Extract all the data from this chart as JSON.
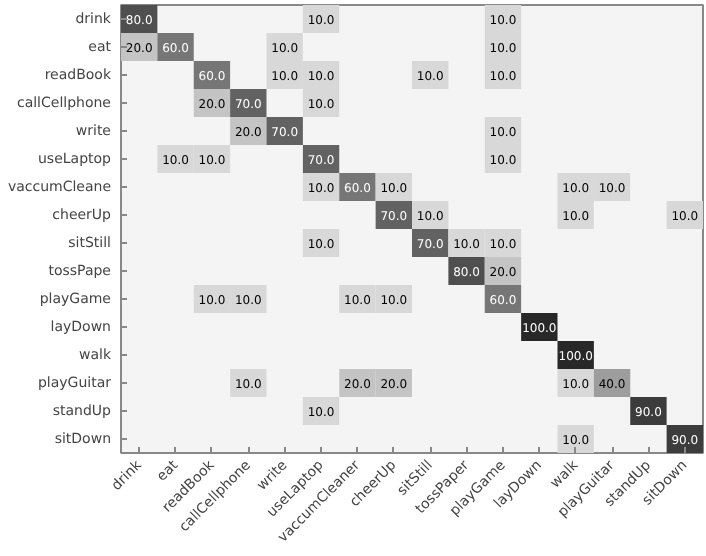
{
  "chart_data": {
    "type": "heatmap",
    "grid": false,
    "categories": [
      "drink",
      "eat",
      "readBook",
      "callCellphone",
      "write",
      "useLaptop",
      "vaccumCleaner",
      "cheerUp",
      "sitStill",
      "tossPaper",
      "playGame",
      "layDown",
      "walk",
      "playGuitar",
      "standUp",
      "sitDown"
    ],
    "y_categories": [
      "drink",
      "eat",
      "readBook",
      "callCellphone",
      "write",
      "useLaptop",
      "vaccumCleane",
      "cheerUp",
      "sitStill",
      "tossPape",
      "playGame",
      "layDown",
      "walk",
      "playGuitar",
      "standUp",
      "sitDown"
    ],
    "cells": [
      [
        80.0,
        null,
        null,
        null,
        null,
        10.0,
        null,
        null,
        null,
        null,
        10.0,
        null,
        null,
        null,
        null,
        null
      ],
      [
        20.0,
        60.0,
        null,
        null,
        10.0,
        null,
        null,
        null,
        null,
        null,
        10.0,
        null,
        null,
        null,
        null,
        null
      ],
      [
        null,
        null,
        60.0,
        null,
        10.0,
        10.0,
        null,
        null,
        10.0,
        null,
        10.0,
        null,
        null,
        null,
        null,
        null
      ],
      [
        null,
        null,
        20.0,
        70.0,
        null,
        10.0,
        null,
        null,
        null,
        null,
        null,
        null,
        null,
        null,
        null,
        null
      ],
      [
        null,
        null,
        null,
        20.0,
        70.0,
        null,
        null,
        null,
        null,
        null,
        10.0,
        null,
        null,
        null,
        null,
        null
      ],
      [
        null,
        10.0,
        10.0,
        null,
        null,
        70.0,
        null,
        null,
        null,
        null,
        10.0,
        null,
        null,
        null,
        null,
        null
      ],
      [
        null,
        null,
        null,
        null,
        null,
        10.0,
        60.0,
        10.0,
        null,
        null,
        null,
        null,
        10.0,
        10.0,
        null,
        null
      ],
      [
        null,
        null,
        null,
        null,
        null,
        null,
        null,
        70.0,
        10.0,
        null,
        null,
        null,
        10.0,
        null,
        null,
        10.0
      ],
      [
        null,
        null,
        null,
        null,
        null,
        10.0,
        null,
        null,
        70.0,
        10.0,
        10.0,
        null,
        null,
        null,
        null,
        null
      ],
      [
        null,
        null,
        null,
        null,
        null,
        null,
        null,
        null,
        null,
        80.0,
        20.0,
        null,
        null,
        null,
        null,
        null
      ],
      [
        null,
        null,
        10.0,
        10.0,
        null,
        null,
        10.0,
        10.0,
        null,
        null,
        60.0,
        null,
        null,
        null,
        null,
        null
      ],
      [
        null,
        null,
        null,
        null,
        null,
        null,
        null,
        null,
        null,
        null,
        null,
        100.0,
        null,
        null,
        null,
        null
      ],
      [
        null,
        null,
        null,
        null,
        null,
        null,
        null,
        null,
        null,
        null,
        null,
        null,
        100.0,
        null,
        null,
        null
      ],
      [
        null,
        null,
        null,
        10.0,
        null,
        null,
        20.0,
        20.0,
        null,
        null,
        null,
        null,
        10.0,
        40.0,
        null,
        null
      ],
      [
        null,
        null,
        null,
        null,
        null,
        10.0,
        null,
        null,
        null,
        null,
        null,
        null,
        null,
        null,
        90.0,
        null
      ],
      [
        null,
        null,
        null,
        null,
        null,
        null,
        null,
        null,
        null,
        null,
        null,
        null,
        10.0,
        null,
        null,
        90.0
      ]
    ],
    "cell_labels": [
      [
        "80.0",
        null,
        null,
        null,
        null,
        "10.0",
        null,
        null,
        null,
        null,
        "10.0",
        null,
        null,
        null,
        null,
        null
      ],
      [
        "20.0",
        "60.0",
        null,
        null,
        "10.0",
        null,
        null,
        null,
        null,
        null,
        "10.0",
        null,
        null,
        null,
        null,
        null
      ],
      [
        null,
        null,
        "60.0",
        null,
        "10.0",
        "10.0",
        null,
        null,
        "10.0",
        null,
        "10.0",
        null,
        null,
        null,
        null,
        null
      ],
      [
        null,
        null,
        "20.0",
        "70.0",
        null,
        "10.0",
        null,
        null,
        null,
        null,
        null,
        null,
        null,
        null,
        null,
        null
      ],
      [
        null,
        null,
        null,
        "20.0",
        "70.0",
        null,
        null,
        null,
        null,
        null,
        "10.0",
        null,
        null,
        null,
        null,
        null
      ],
      [
        null,
        "10.0",
        "10.0",
        null,
        null,
        "70.0",
        null,
        null,
        null,
        null,
        "10.0",
        null,
        null,
        null,
        null,
        null
      ],
      [
        null,
        null,
        null,
        null,
        null,
        "10.0",
        "60.0",
        "10.0",
        null,
        null,
        null,
        null,
        "10.0",
        "10.0",
        null,
        null
      ],
      [
        null,
        null,
        null,
        null,
        null,
        null,
        null,
        "70.0",
        "10.0",
        null,
        null,
        null,
        "10.0",
        null,
        null,
        "10.0"
      ],
      [
        null,
        null,
        null,
        null,
        null,
        "10.0",
        null,
        null,
        "70.0",
        "10.0",
        "10.0",
        null,
        null,
        null,
        null,
        null
      ],
      [
        null,
        null,
        null,
        null,
        null,
        null,
        null,
        null,
        null,
        "80.0",
        "20.0",
        null,
        null,
        null,
        null,
        null
      ],
      [
        null,
        null,
        "10.0",
        "10.0",
        null,
        null,
        "10.0",
        "10.0",
        null,
        null,
        "60.0",
        null,
        null,
        null,
        null,
        null
      ],
      [
        null,
        null,
        null,
        null,
        null,
        null,
        null,
        null,
        null,
        null,
        null,
        "100.0",
        null,
        null,
        null,
        null
      ],
      [
        null,
        null,
        null,
        null,
        null,
        null,
        null,
        null,
        null,
        null,
        null,
        null,
        "100.0",
        null,
        null,
        null
      ],
      [
        null,
        null,
        null,
        "10.0",
        null,
        null,
        "20.0",
        "20.0",
        null,
        null,
        null,
        null,
        "10.0",
        "40.0",
        null,
        null
      ],
      [
        null,
        null,
        null,
        null,
        null,
        "10.0",
        null,
        null,
        null,
        null,
        null,
        null,
        null,
        null,
        "90.0",
        null
      ],
      [
        null,
        null,
        null,
        null,
        null,
        null,
        null,
        null,
        null,
        null,
        null,
        null,
        "10.0",
        null,
        null,
        "90.0"
      ]
    ]
  }
}
